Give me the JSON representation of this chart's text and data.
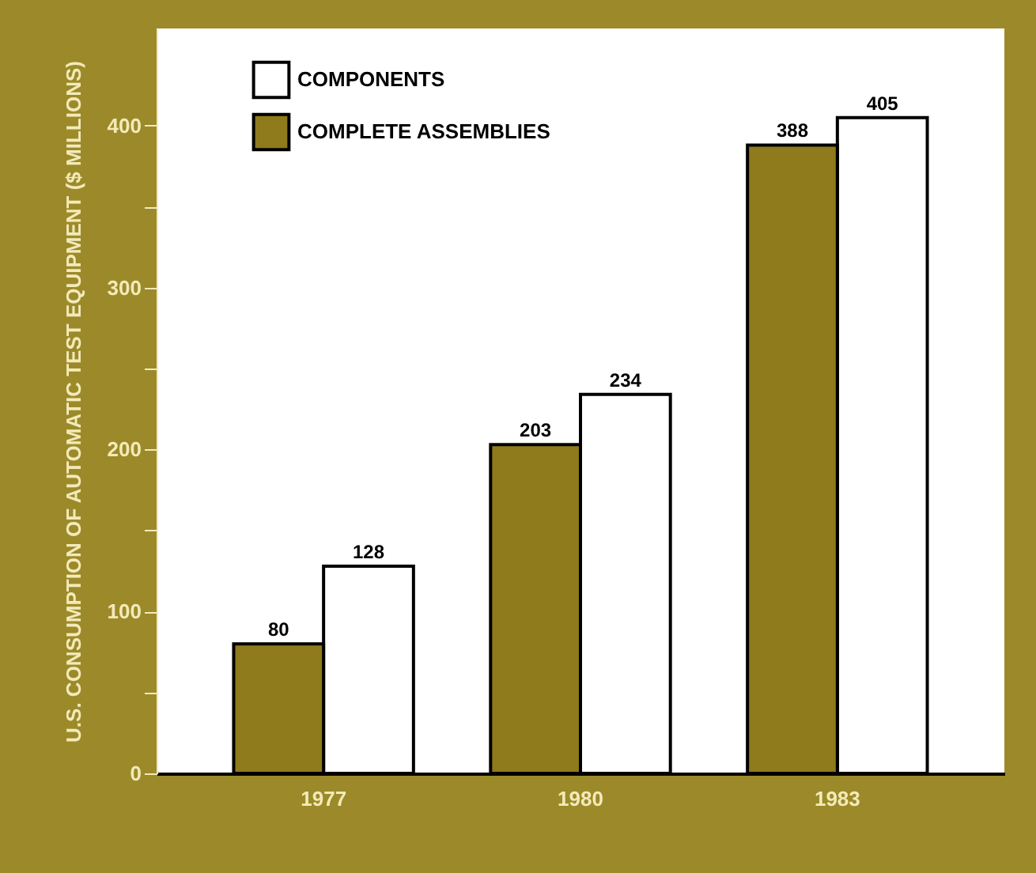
{
  "chart_data": {
    "type": "bar",
    "ylabel": "U.S. CONSUMPTION OF AUTOMATIC TEST EQUIPMENT ($ MILLIONS)",
    "categories": [
      "1977",
      "1980",
      "1983"
    ],
    "series": [
      {
        "name": "COMPONENTS",
        "color": "#ffffff",
        "values": [
          128,
          234,
          405
        ]
      },
      {
        "name": "COMPLETE ASSEMBLIES",
        "color": "#8f7a1c",
        "values": [
          80,
          203,
          388
        ]
      }
    ],
    "ylim": [
      0,
      460
    ],
    "yticks": [
      0,
      {
        "value": 50,
        "label": null
      },
      100,
      {
        "value": 150,
        "label": null
      },
      200,
      {
        "value": 250,
        "label": null
      },
      300,
      {
        "value": 350,
        "label": null
      },
      400
    ],
    "data_labels": true,
    "grid": false,
    "legend": "top left"
  }
}
